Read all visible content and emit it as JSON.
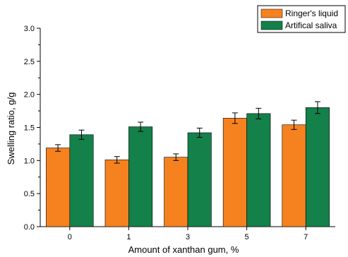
{
  "chart_data": {
    "type": "bar",
    "xlabel": "Amount of xanthan gum, %",
    "ylabel": "Swelling ratio, g/g",
    "categories": [
      "0",
      "1",
      "3",
      "5",
      "7"
    ],
    "ylim": [
      0.0,
      3.0
    ],
    "yticks": [
      "0.0",
      "0.5",
      "1.0",
      "1.5",
      "2.0",
      "2.5",
      "3.0"
    ],
    "ytick_values": [
      0.0,
      0.5,
      1.0,
      1.5,
      2.0,
      2.5,
      3.0
    ],
    "series": [
      {
        "name": "Ringer's liquid",
        "color": "#f5821f",
        "values": [
          1.19,
          1.01,
          1.05,
          1.64,
          1.54
        ],
        "errors": [
          0.05,
          0.05,
          0.05,
          0.08,
          0.07
        ]
      },
      {
        "name": "Artifical saliva",
        "color": "#14804a",
        "values": [
          1.39,
          1.51,
          1.42,
          1.71,
          1.8
        ],
        "errors": [
          0.07,
          0.07,
          0.07,
          0.08,
          0.09
        ]
      }
    ],
    "legend": "top-right",
    "grid": false
  }
}
